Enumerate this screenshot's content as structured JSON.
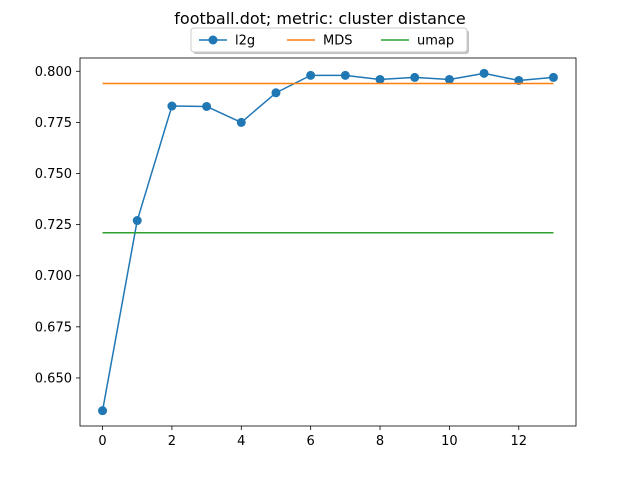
{
  "chart_data": {
    "type": "line",
    "title": "football.dot; metric: cluster distance",
    "xlabel": "",
    "ylabel": "",
    "xlim": [
      -0.65,
      13.65
    ],
    "ylim": [
      0.6265,
      0.8065
    ],
    "x_ticks": [
      0,
      2,
      4,
      6,
      8,
      10,
      12
    ],
    "y_ticks": [
      0.65,
      0.675,
      0.7,
      0.725,
      0.75,
      0.775,
      0.8
    ],
    "x_tick_labels": [
      "0",
      "2",
      "4",
      "6",
      "8",
      "10",
      "12"
    ],
    "y_tick_labels": [
      "0.650",
      "0.675",
      "0.700",
      "0.725",
      "0.750",
      "0.775",
      "0.800"
    ],
    "grid": false,
    "legend_position": "top-center",
    "series": [
      {
        "name": "l2g",
        "color": "#1f77b4",
        "marker": "circle",
        "x": [
          0,
          1,
          2,
          3,
          4,
          5,
          6,
          7,
          8,
          9,
          10,
          11,
          12,
          13
        ],
        "values": [
          0.634,
          0.727,
          0.783,
          0.7828,
          0.775,
          0.7895,
          0.798,
          0.798,
          0.796,
          0.797,
          0.796,
          0.799,
          0.7955,
          0.797
        ]
      },
      {
        "name": "MDS",
        "color": "#ff7f0e",
        "marker": "none",
        "x": [
          0,
          13
        ],
        "values": [
          0.794,
          0.794
        ]
      },
      {
        "name": "umap",
        "color": "#2ca02c",
        "marker": "none",
        "x": [
          0,
          13
        ],
        "values": [
          0.721,
          0.721
        ]
      }
    ]
  }
}
